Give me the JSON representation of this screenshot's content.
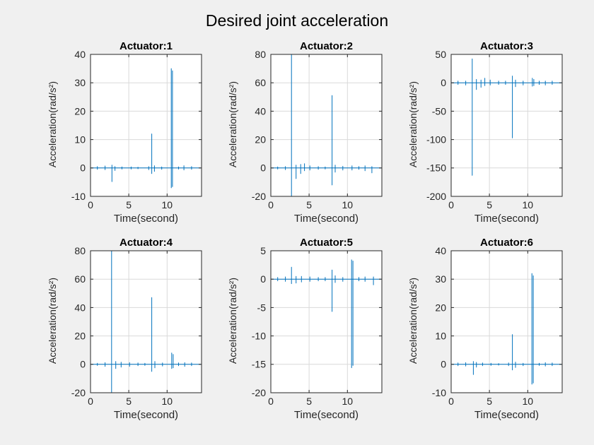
{
  "figure": {
    "title": "Desired joint acceleration"
  },
  "colors": {
    "background": "#F0F0F0",
    "plot_bg": "#FFFFFF",
    "axis": "#262626",
    "grid": "#D9D9D9",
    "line": "#0072BD"
  },
  "chart_data": [
    {
      "type": "line",
      "title": "Actuator:1",
      "xlabel": "Time(second)",
      "ylabel": "Acceleration(rad/s²)",
      "xlim": [
        0,
        14.5
      ],
      "ylim": [
        -10,
        40
      ],
      "xticks": [
        0,
        5,
        10
      ],
      "yticks": [
        -10,
        0,
        10,
        20,
        30,
        40
      ],
      "baseline": 0,
      "x_end": 14.4,
      "spikes": [
        [
          0.9,
          -0.5,
          0.5
        ],
        [
          1.9,
          -0.6,
          0.7
        ],
        [
          2.8,
          -4.8,
          1.0
        ],
        [
          3.2,
          -0.9,
          0.5
        ],
        [
          4.1,
          -0.4,
          0.4
        ],
        [
          5.3,
          -0.4,
          0.4
        ],
        [
          6.2,
          -0.3,
          0.3
        ],
        [
          7.6,
          -0.6,
          0.5
        ],
        [
          8.0,
          -2.0,
          12.0
        ],
        [
          8.35,
          -1.2,
          0.8
        ],
        [
          9.3,
          -0.5,
          0.4
        ],
        [
          10.55,
          -7.0,
          35.0
        ],
        [
          10.7,
          -6.6,
          34.2
        ],
        [
          11.5,
          -0.4,
          0.4
        ],
        [
          12.2,
          -0.7,
          0.8
        ],
        [
          13.2,
          -0.5,
          0.5
        ]
      ]
    },
    {
      "type": "line",
      "title": "Actuator:2",
      "xlabel": "Time(second)",
      "ylabel": "Acceleration(rad/s²)",
      "xlim": [
        0,
        14.5
      ],
      "ylim": [
        -20,
        80
      ],
      "xticks": [
        0,
        5,
        10
      ],
      "yticks": [
        -20,
        0,
        20,
        40,
        60,
        80
      ],
      "baseline": 0,
      "x_end": 14.4,
      "spikes": [
        [
          0.9,
          -0.8,
          0.8
        ],
        [
          1.9,
          -1.2,
          1.0
        ],
        [
          2.7,
          -25,
          85
        ],
        [
          3.3,
          -7.5,
          2.0
        ],
        [
          3.9,
          -4.0,
          2.5
        ],
        [
          4.4,
          -2.0,
          3.0
        ],
        [
          5.1,
          -1.5,
          1.5
        ],
        [
          6.2,
          -1.0,
          1.0
        ],
        [
          7.1,
          -0.8,
          0.8
        ],
        [
          8.0,
          -12.0,
          51.0
        ],
        [
          8.4,
          -3.0,
          2.0
        ],
        [
          9.4,
          -1.5,
          1.2
        ],
        [
          10.6,
          -1.5,
          1.5
        ],
        [
          11.5,
          -1.0,
          1.0
        ],
        [
          12.3,
          -2.0,
          1.5
        ],
        [
          13.2,
          -3.5,
          1.0
        ]
      ]
    },
    {
      "type": "line",
      "title": "Actuator:3",
      "xlabel": "Time(second)",
      "ylabel": "Acceleration(rad/s²)",
      "xlim": [
        0,
        14.5
      ],
      "ylim": [
        -200,
        50
      ],
      "xticks": [
        0,
        5,
        10
      ],
      "yticks": [
        -200,
        -150,
        -100,
        -50,
        0,
        50
      ],
      "baseline": 0,
      "x_end": 14.4,
      "spikes": [
        [
          0.9,
          -3,
          3
        ],
        [
          1.9,
          -4,
          3
        ],
        [
          2.75,
          -163,
          42
        ],
        [
          3.3,
          -12,
          6
        ],
        [
          3.9,
          -8,
          5
        ],
        [
          4.4,
          -5,
          8
        ],
        [
          5.1,
          -4,
          5
        ],
        [
          6.2,
          -3,
          3
        ],
        [
          7.1,
          -3,
          3
        ],
        [
          8.0,
          -97,
          12
        ],
        [
          8.4,
          -7,
          5
        ],
        [
          9.4,
          -4,
          3
        ],
        [
          10.6,
          -6,
          8
        ],
        [
          10.8,
          -5,
          6
        ],
        [
          11.5,
          -3,
          3
        ],
        [
          12.3,
          -4,
          3
        ],
        [
          13.2,
          -3,
          3
        ]
      ]
    },
    {
      "type": "line",
      "title": "Actuator:4",
      "xlabel": "Time(second)",
      "ylabel": "Acceleration(rad/s²)",
      "xlim": [
        0,
        14.5
      ],
      "ylim": [
        -20,
        80
      ],
      "xticks": [
        0,
        5,
        10
      ],
      "yticks": [
        -20,
        0,
        20,
        40,
        60,
        80
      ],
      "baseline": 0,
      "x_end": 14.4,
      "spikes": [
        [
          0.9,
          -0.8,
          0.8
        ],
        [
          1.9,
          -1.5,
          1.2
        ],
        [
          2.75,
          -25,
          85
        ],
        [
          3.3,
          -3.0,
          2.0
        ],
        [
          4.0,
          -2.0,
          1.5
        ],
        [
          5.1,
          -1.5,
          1.2
        ],
        [
          6.2,
          -1.0,
          1.0
        ],
        [
          7.1,
          -0.8,
          0.8
        ],
        [
          8.0,
          -5.0,
          47.0
        ],
        [
          8.4,
          -2.5,
          2.0
        ],
        [
          9.4,
          -1.2,
          1.0
        ],
        [
          10.6,
          -3.0,
          8.0
        ],
        [
          10.8,
          -2.5,
          7.0
        ],
        [
          11.5,
          -1.0,
          1.0
        ],
        [
          12.3,
          -1.5,
          1.2
        ],
        [
          13.2,
          -1.0,
          1.0
        ]
      ]
    },
    {
      "type": "line",
      "title": "Actuator:5",
      "xlabel": "Time(second)",
      "ylabel": "Acceleration(rad/s²)",
      "xlim": [
        0,
        14.5
      ],
      "ylim": [
        -20,
        5
      ],
      "xticks": [
        0,
        5,
        10
      ],
      "yticks": [
        -20,
        -15,
        -10,
        -5,
        0,
        5
      ],
      "baseline": 0,
      "x_end": 14.4,
      "spikes": [
        [
          0.9,
          -0.3,
          0.3
        ],
        [
          1.9,
          -0.4,
          0.4
        ],
        [
          2.7,
          -0.8,
          2.1
        ],
        [
          3.3,
          -0.7,
          0.5
        ],
        [
          4.0,
          -0.5,
          0.5
        ],
        [
          5.1,
          -0.4,
          0.4
        ],
        [
          6.2,
          -0.3,
          0.3
        ],
        [
          7.1,
          -0.3,
          0.3
        ],
        [
          8.0,
          -5.7,
          1.6
        ],
        [
          8.4,
          -0.6,
          0.6
        ],
        [
          9.4,
          -0.4,
          0.3
        ],
        [
          10.55,
          -15.6,
          3.4
        ],
        [
          10.72,
          -15.2,
          3.2
        ],
        [
          11.5,
          -0.3,
          0.3
        ],
        [
          12.3,
          -0.4,
          0.4
        ],
        [
          13.4,
          -1.0,
          0.4
        ]
      ]
    },
    {
      "type": "line",
      "title": "Actuator:6",
      "xlabel": "Time(second)",
      "ylabel": "Acceleration(rad/s²)",
      "xlim": [
        0,
        14.5
      ],
      "ylim": [
        -10,
        40
      ],
      "xticks": [
        0,
        5,
        10
      ],
      "yticks": [
        -10,
        0,
        10,
        20,
        30,
        40
      ],
      "baseline": 0,
      "x_end": 14.4,
      "spikes": [
        [
          0.9,
          -0.5,
          0.5
        ],
        [
          1.9,
          -0.6,
          0.6
        ],
        [
          2.9,
          -3.6,
          1.0
        ],
        [
          3.3,
          -1.0,
          0.7
        ],
        [
          4.1,
          -0.5,
          0.5
        ],
        [
          5.2,
          -0.4,
          0.4
        ],
        [
          6.2,
          -0.3,
          0.3
        ],
        [
          7.5,
          -0.5,
          0.5
        ],
        [
          8.0,
          -2.0,
          10.5
        ],
        [
          8.4,
          -1.1,
          0.8
        ],
        [
          9.4,
          -0.5,
          0.4
        ],
        [
          10.55,
          -7.0,
          32.0
        ],
        [
          10.72,
          -6.6,
          31.2
        ],
        [
          11.5,
          -0.4,
          0.4
        ],
        [
          12.3,
          -0.6,
          0.6
        ],
        [
          13.2,
          -0.5,
          0.5
        ]
      ]
    }
  ]
}
